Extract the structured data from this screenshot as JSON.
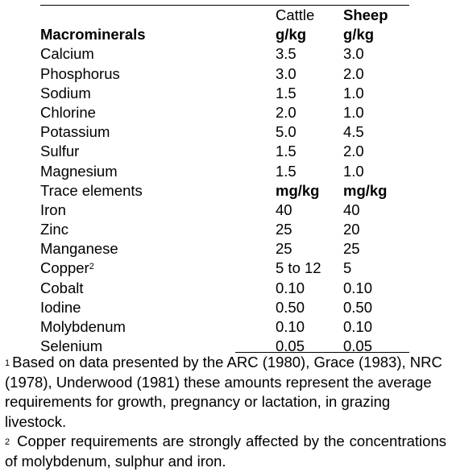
{
  "table": {
    "header": {
      "col1": "Cattle",
      "col2": "Sheep"
    },
    "rows": [
      {
        "name": "Macrominerals",
        "cattle": "g/kg",
        "sheep": "g/kg",
        "type": "section"
      },
      {
        "name": "Calcium",
        "cattle": "3.5",
        "sheep": "3.0"
      },
      {
        "name": "Phosphorus",
        "cattle": "3.0",
        "sheep": "2.0"
      },
      {
        "name": "Sodium",
        "cattle": "1.5",
        "sheep": "1.0"
      },
      {
        "name": "Chlorine",
        "cattle": "2.0",
        "sheep": "1.0"
      },
      {
        "name": "Potassium",
        "cattle": "5.0",
        "sheep": "4.5"
      },
      {
        "name": "Sulfur",
        "cattle": "1.5",
        "sheep": "2.0"
      },
      {
        "name": "Magnesium",
        "cattle": "1.5",
        "sheep": "1.0"
      },
      {
        "name": "Trace elements",
        "cattle": "mg/kg",
        "sheep": "mg/kg",
        "type": "unit"
      },
      {
        "name": "Iron",
        "cattle": "40",
        "sheep": "40"
      },
      {
        "name": "Zinc",
        "cattle": "25",
        "sheep": "20"
      },
      {
        "name": "Manganese",
        "cattle": "25",
        "sheep": "25"
      },
      {
        "name": "Copper",
        "sup": "2",
        "cattle": "5 to 12",
        "sheep": "5"
      },
      {
        "name": "Cobalt",
        "cattle": "0.10",
        "sheep": "0.10"
      },
      {
        "name": "Iodine",
        "cattle": "0.50",
        "sheep": "0.50"
      },
      {
        "name": "Molybdenum",
        "cattle": "0.10",
        "sheep": "0.10"
      },
      {
        "name": "Selenium",
        "cattle": "0.05",
        "sheep": "0.05"
      }
    ]
  },
  "footnotes": [
    {
      "mark": "1",
      "text": "Based on data presented by the ARC (1980), Grace (1983), NRC (1978), Underwood (1981) these amounts represent the average requirements for growth, pregnancy or lactation, in grazing livestock."
    },
    {
      "mark": "2",
      "text": " Copper requirements are strongly affected by the concentrations of molybdenum, sulphur and iron."
    }
  ]
}
